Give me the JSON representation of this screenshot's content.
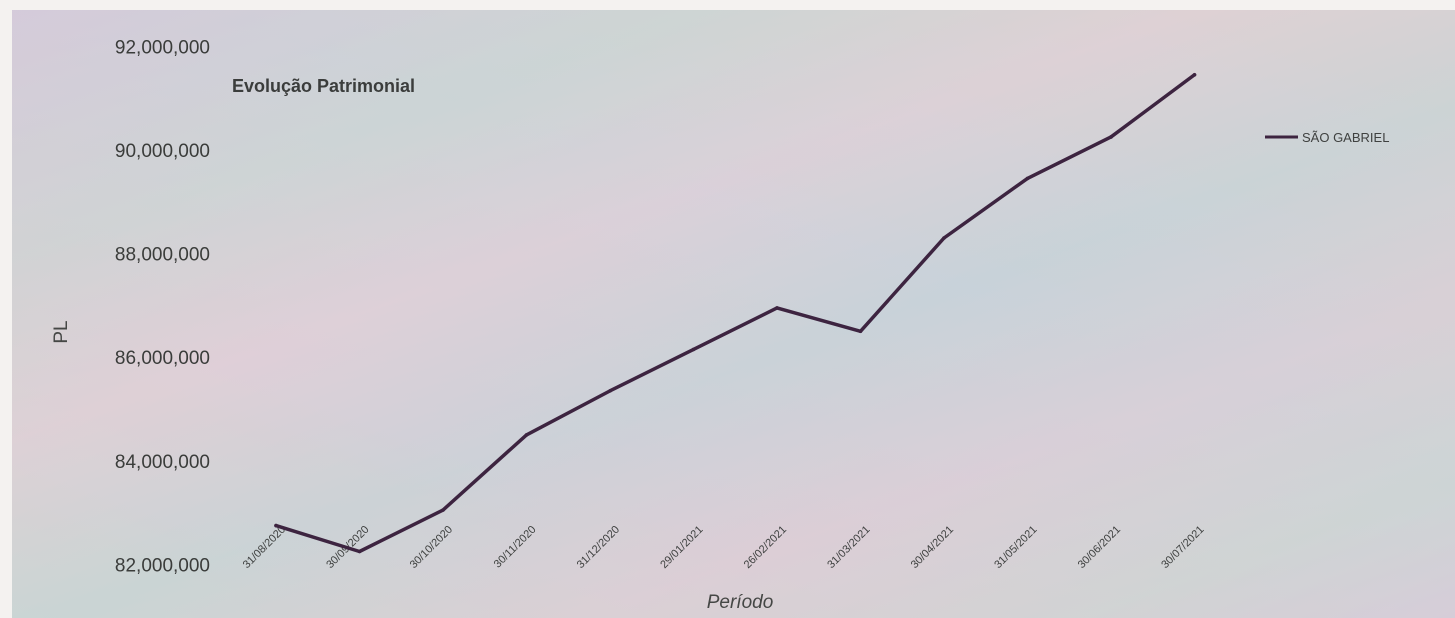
{
  "chart_data": {
    "type": "line",
    "title": "Evolução Patrimonial",
    "xlabel": "Período",
    "ylabel": "PL",
    "categories": [
      "31/08/2020",
      "30/09/2020",
      "30/10/2020",
      "30/11/2020",
      "31/12/2020",
      "29/01/2021",
      "26/02/2021",
      "31/03/2021",
      "30/04/2021",
      "31/05/2021",
      "30/06/2021",
      "30/07/2021"
    ],
    "y_ticks": [
      82000000,
      84000000,
      86000000,
      88000000,
      90000000,
      92000000
    ],
    "y_tick_labels": [
      "82,000,000",
      "84,000,000",
      "86,000,000",
      "88,000,000",
      "90,000,000",
      "92,000,000"
    ],
    "ylim": [
      81700000,
      92700000
    ],
    "grid": false,
    "legend_position": "top-right",
    "series": [
      {
        "name": "SÃO GABRIEL",
        "color": "#3d2440",
        "values": [
          82750000,
          82250000,
          83050000,
          84500000,
          85350000,
          86150000,
          86950000,
          86500000,
          88300000,
          89450000,
          90250000,
          91450000
        ]
      }
    ]
  }
}
